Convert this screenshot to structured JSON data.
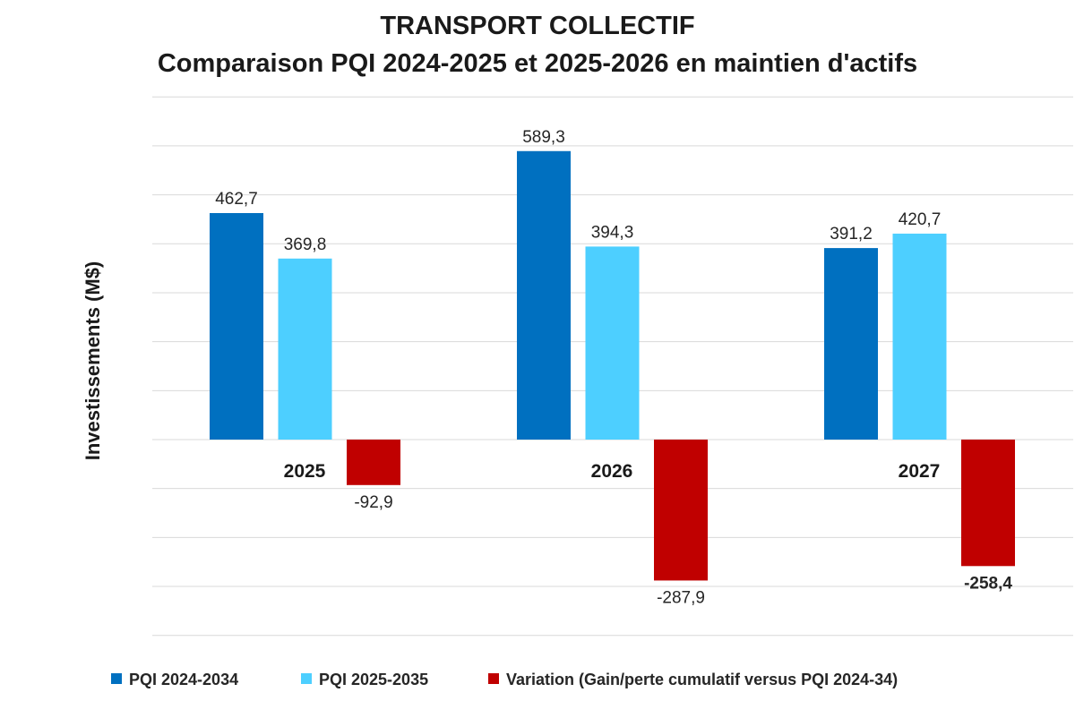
{
  "chart_data": {
    "type": "bar",
    "title": "TRANSPORT COLLECTIF",
    "subtitle": "Comparaison PQI 2024-2025 et 2025-2026 en maintien d'actifs",
    "ylabel": "Investissements (M$)",
    "xlabel": "",
    "categories": [
      "2025",
      "2026",
      "2027"
    ],
    "series": [
      {
        "name": "PQI 2024-2034",
        "color": "#0070c0",
        "values": [
          462.7,
          589.3,
          391.2
        ],
        "labels": [
          "462,7",
          "589,3",
          "391,2"
        ]
      },
      {
        "name": "PQI 2025-2035",
        "color": "#4dcfff",
        "values": [
          369.8,
          394.3,
          420.7
        ],
        "labels": [
          "369,8",
          "394,3",
          "420,7"
        ]
      },
      {
        "name": "Variation (Gain/perte cumulatif versus PQI 2024-34)",
        "color": "#c00000",
        "values": [
          -92.9,
          -287.9,
          -258.4
        ],
        "labels": [
          "-92,9",
          "-287,9",
          "-258,4"
        ]
      }
    ],
    "ylim": [
      -400,
      700
    ],
    "grid": true,
    "legend_position": "bottom"
  }
}
